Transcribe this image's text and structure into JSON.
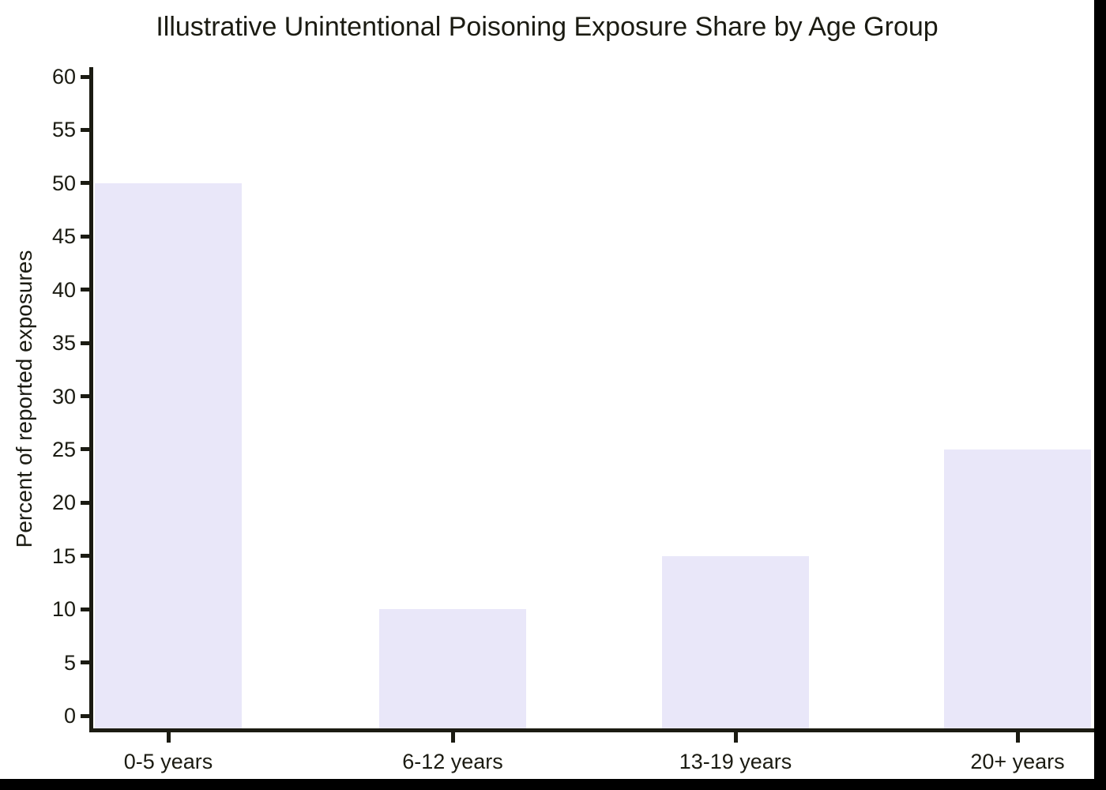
{
  "chart_data": {
    "type": "bar",
    "title": "Illustrative Unintentional Poisoning Exposure Share by Age Group",
    "ylabel": "Percent of reported exposures",
    "xlabel": "",
    "categories": [
      "0-5 years",
      "6-12 years",
      "13-19 years",
      "20+ years"
    ],
    "values": [
      50,
      10,
      15,
      25
    ],
    "ylim": [
      0,
      60
    ],
    "yticks": [
      0,
      5,
      10,
      15,
      20,
      25,
      30,
      35,
      40,
      45,
      50,
      55,
      60
    ],
    "grid": false,
    "legend": "none",
    "bar_color": "#e9e7f9",
    "axis_color": "#1b1b12",
    "figure_background": "#ffffff",
    "page_background": "#000000"
  }
}
